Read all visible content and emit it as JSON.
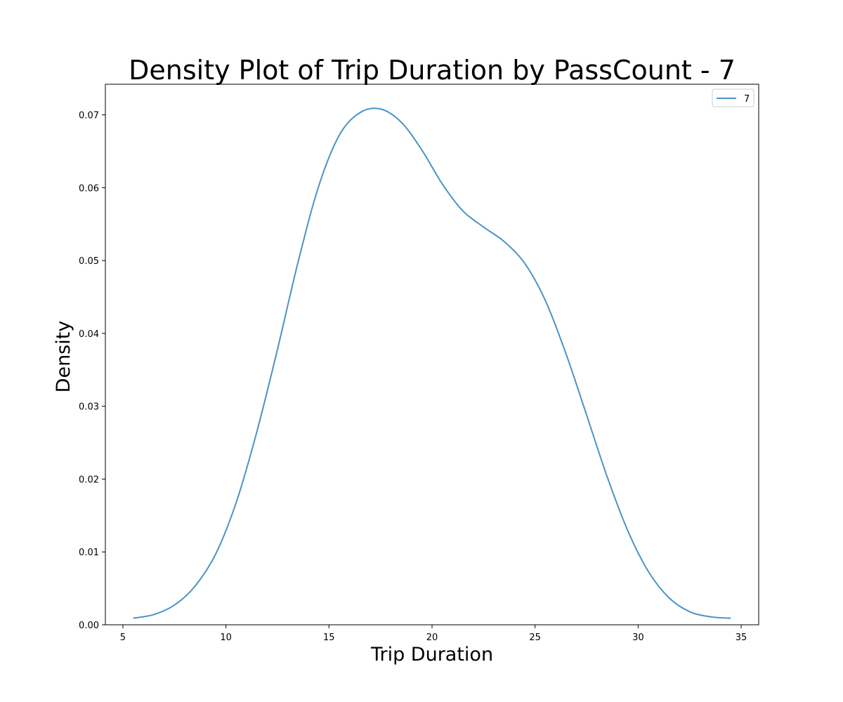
{
  "chart_data": {
    "type": "line",
    "title": "Density Plot of Trip Duration by PassCount - 7",
    "xlabel": "Trip Duration",
    "ylabel": "Density",
    "xlim": [
      4.15,
      35.85
    ],
    "ylim": [
      0,
      0.0742
    ],
    "xticks": [
      5,
      10,
      15,
      20,
      25,
      30,
      35
    ],
    "yticks": [
      0,
      0.01,
      0.02,
      0.03,
      0.04,
      0.05,
      0.06,
      0.07
    ],
    "xtick_labels": [
      "5",
      "10",
      "15",
      "20",
      "25",
      "30",
      "35"
    ],
    "ytick_labels": [
      "0.00",
      "0.01",
      "0.02",
      "0.03",
      "0.04",
      "0.05",
      "0.06",
      "0.07"
    ],
    "grid": false,
    "legend": {
      "placement": "top-right",
      "entries": [
        "7"
      ]
    },
    "series": [
      {
        "name": "7",
        "color": "#4a94c4",
        "x": [
          5.5,
          6.5,
          7.5,
          8.5,
          9.5,
          10.5,
          11.5,
          12.5,
          13.5,
          14.5,
          15.5,
          16.5,
          17.5,
          18.5,
          19.5,
          20.5,
          21.5,
          22.5,
          23.5,
          24.5,
          25.5,
          26.5,
          27.5,
          28.5,
          29.5,
          30.5,
          31.5,
          32.5,
          33.5,
          34.5
        ],
        "y": [
          0.0009,
          0.0014,
          0.0027,
          0.0053,
          0.0097,
          0.0168,
          0.0265,
          0.0378,
          0.0498,
          0.0602,
          0.0672,
          0.0703,
          0.0708,
          0.069,
          0.0652,
          0.0605,
          0.0568,
          0.0546,
          0.0526,
          0.0496,
          0.0445,
          0.0372,
          0.0288,
          0.0203,
          0.0129,
          0.0073,
          0.0037,
          0.0018,
          0.0011,
          0.0009
        ]
      }
    ]
  }
}
